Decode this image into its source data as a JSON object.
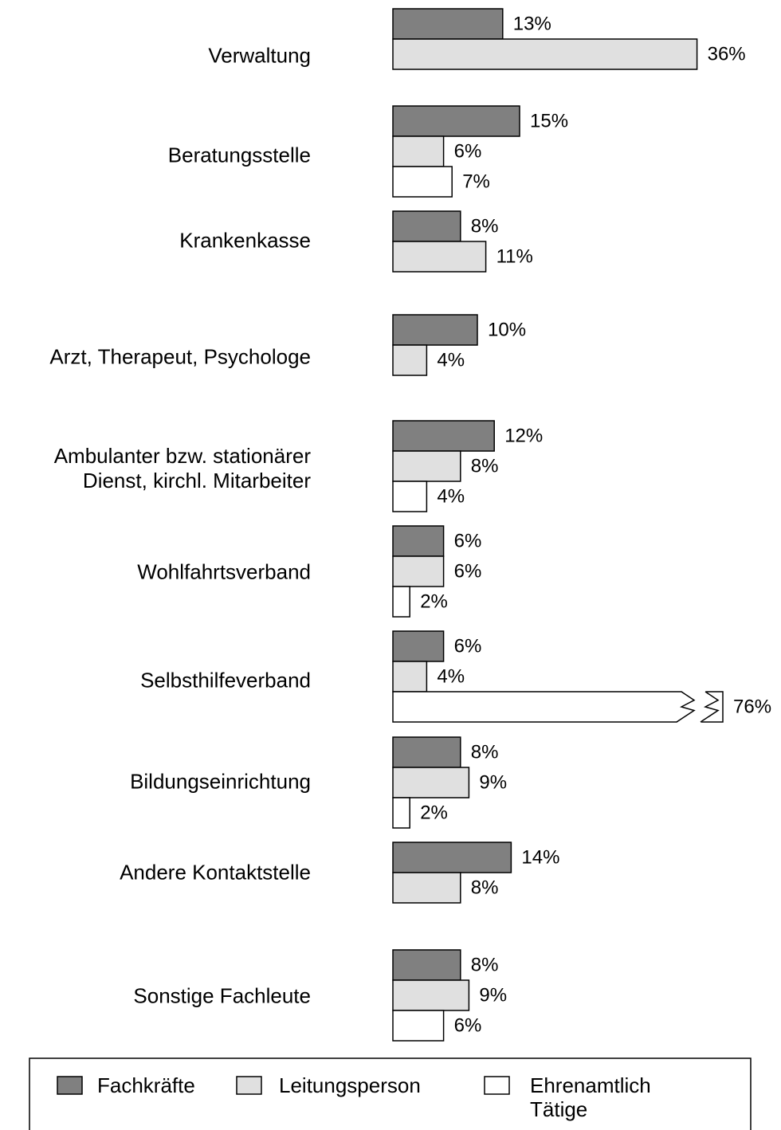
{
  "chart_data": {
    "type": "hbar",
    "categories": [
      "Verwaltung",
      "Beratungsstelle",
      "Krankenkasse",
      "Arzt, Therapeut, Psychologe",
      "Ambulanter bzw. stationärer\nDienst, kirchl. Mitarbeiter",
      "Wohlfahrtsverband",
      "Selbsthilfeverband",
      "Bildungseinrichtung",
      "Andere Kontaktstelle",
      "Sonstige Fachleute"
    ],
    "series": [
      {
        "name": "Fachkräfte",
        "color": "#808080",
        "values": [
          13,
          15,
          8,
          10,
          12,
          6,
          6,
          8,
          14,
          8
        ],
        "value_labels": [
          "13%",
          "15%",
          "8%",
          "10%",
          "12%",
          "6%",
          "6%",
          "8%",
          "14%",
          "8%"
        ]
      },
      {
        "name": "Leitungsperson",
        "color": "#e0e0e0",
        "values": [
          36,
          6,
          11,
          4,
          8,
          6,
          4,
          9,
          8,
          9
        ],
        "value_labels": [
          "36%",
          "6%",
          "11%",
          "4%",
          "8%",
          "6%",
          "4%",
          "9%",
          "8%",
          "9%"
        ]
      },
      {
        "name": "Ehrenamtlich Tätige",
        "color": "#ffffff",
        "values": [
          null,
          7,
          null,
          null,
          4,
          2,
          76,
          2,
          null,
          6
        ],
        "value_labels": [
          null,
          "7%",
          null,
          null,
          "4%",
          "2%",
          "76%",
          "2%",
          null,
          "6%"
        ]
      }
    ],
    "xlim": [
      0,
      40
    ],
    "legend": "bottom"
  }
}
